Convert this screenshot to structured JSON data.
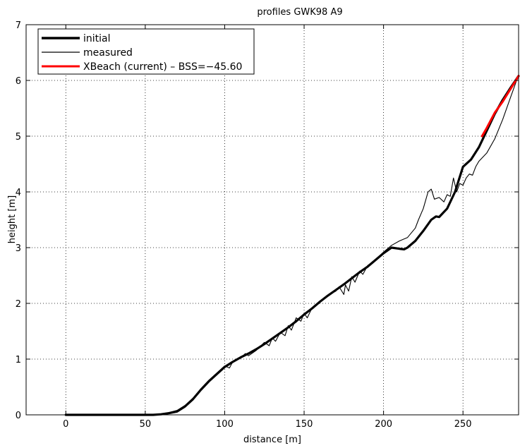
{
  "chart_data": {
    "type": "line",
    "title": "profiles GWK98 A9",
    "xlabel": "distance [m]",
    "ylabel": "height [m]",
    "xlim": [
      -25,
      285
    ],
    "ylim": [
      0,
      7
    ],
    "xticks": [
      0,
      50,
      100,
      150,
      200,
      250
    ],
    "yticks": [
      0,
      1,
      2,
      3,
      4,
      5,
      6,
      7
    ],
    "grid": true,
    "legend_position": "top-left",
    "series": [
      {
        "name": "initial",
        "color": "#000000",
        "style": "thick",
        "x": [
          0,
          20,
          40,
          55,
          60,
          65,
          70,
          75,
          80,
          85,
          90,
          95,
          100,
          105,
          110,
          115,
          120,
          125,
          130,
          135,
          140,
          145,
          150,
          155,
          160,
          165,
          170,
          175,
          180,
          185,
          190,
          195,
          200,
          205,
          210,
          213,
          215,
          220,
          225,
          230,
          233,
          235,
          240,
          245,
          250,
          255,
          260,
          265,
          270,
          275,
          280,
          285
        ],
        "y": [
          0.0,
          0.0,
          0.0,
          0.0,
          0.01,
          0.03,
          0.06,
          0.15,
          0.28,
          0.45,
          0.6,
          0.73,
          0.86,
          0.95,
          1.03,
          1.1,
          1.18,
          1.27,
          1.37,
          1.47,
          1.57,
          1.68,
          1.8,
          1.91,
          2.03,
          2.14,
          2.24,
          2.34,
          2.45,
          2.56,
          2.66,
          2.78,
          2.9,
          3.0,
          2.98,
          2.97,
          3.0,
          3.12,
          3.3,
          3.5,
          3.56,
          3.55,
          3.7,
          4.0,
          4.45,
          4.58,
          4.8,
          5.1,
          5.4,
          5.65,
          5.87,
          6.08
        ]
      },
      {
        "name": "measured",
        "color": "#000000",
        "style": "thin",
        "x": [
          0,
          20,
          40,
          55,
          62,
          66,
          70,
          75,
          80,
          85,
          90,
          95,
          100,
          103,
          105,
          110,
          113,
          115,
          120,
          125,
          128,
          130,
          132,
          135,
          138,
          140,
          142,
          145,
          148,
          150,
          152,
          155,
          160,
          165,
          170,
          172,
          175,
          176,
          178,
          180,
          182,
          185,
          187,
          190,
          195,
          200,
          205,
          210,
          215,
          220,
          222,
          225,
          228,
          230,
          232,
          235,
          238,
          240,
          242,
          244,
          246,
          248,
          250,
          252,
          254,
          256,
          258,
          260,
          265,
          270,
          275,
          280,
          285
        ],
        "y": [
          0.0,
          0.0,
          0.0,
          0.0,
          0.02,
          0.05,
          0.08,
          0.17,
          0.3,
          0.47,
          0.62,
          0.75,
          0.88,
          0.84,
          0.95,
          1.02,
          1.1,
          1.06,
          1.16,
          1.3,
          1.24,
          1.38,
          1.32,
          1.48,
          1.42,
          1.6,
          1.52,
          1.74,
          1.68,
          1.82,
          1.74,
          1.92,
          2.04,
          2.15,
          2.22,
          2.3,
          2.16,
          2.33,
          2.22,
          2.48,
          2.38,
          2.58,
          2.52,
          2.68,
          2.78,
          2.92,
          3.04,
          3.12,
          3.18,
          3.35,
          3.5,
          3.7,
          4.0,
          4.05,
          3.87,
          3.9,
          3.82,
          3.95,
          3.92,
          4.25,
          4.0,
          4.15,
          4.12,
          4.25,
          4.32,
          4.3,
          4.45,
          4.55,
          4.7,
          4.95,
          5.3,
          5.7,
          6.1
        ]
      },
      {
        "name": "XBeach (current) – BSS=−45.60",
        "color": "#ff0000",
        "style": "medium",
        "x": [
          262,
          265,
          270,
          275,
          280,
          285
        ],
        "y": [
          5.0,
          5.15,
          5.42,
          5.62,
          5.85,
          6.08
        ]
      }
    ]
  }
}
